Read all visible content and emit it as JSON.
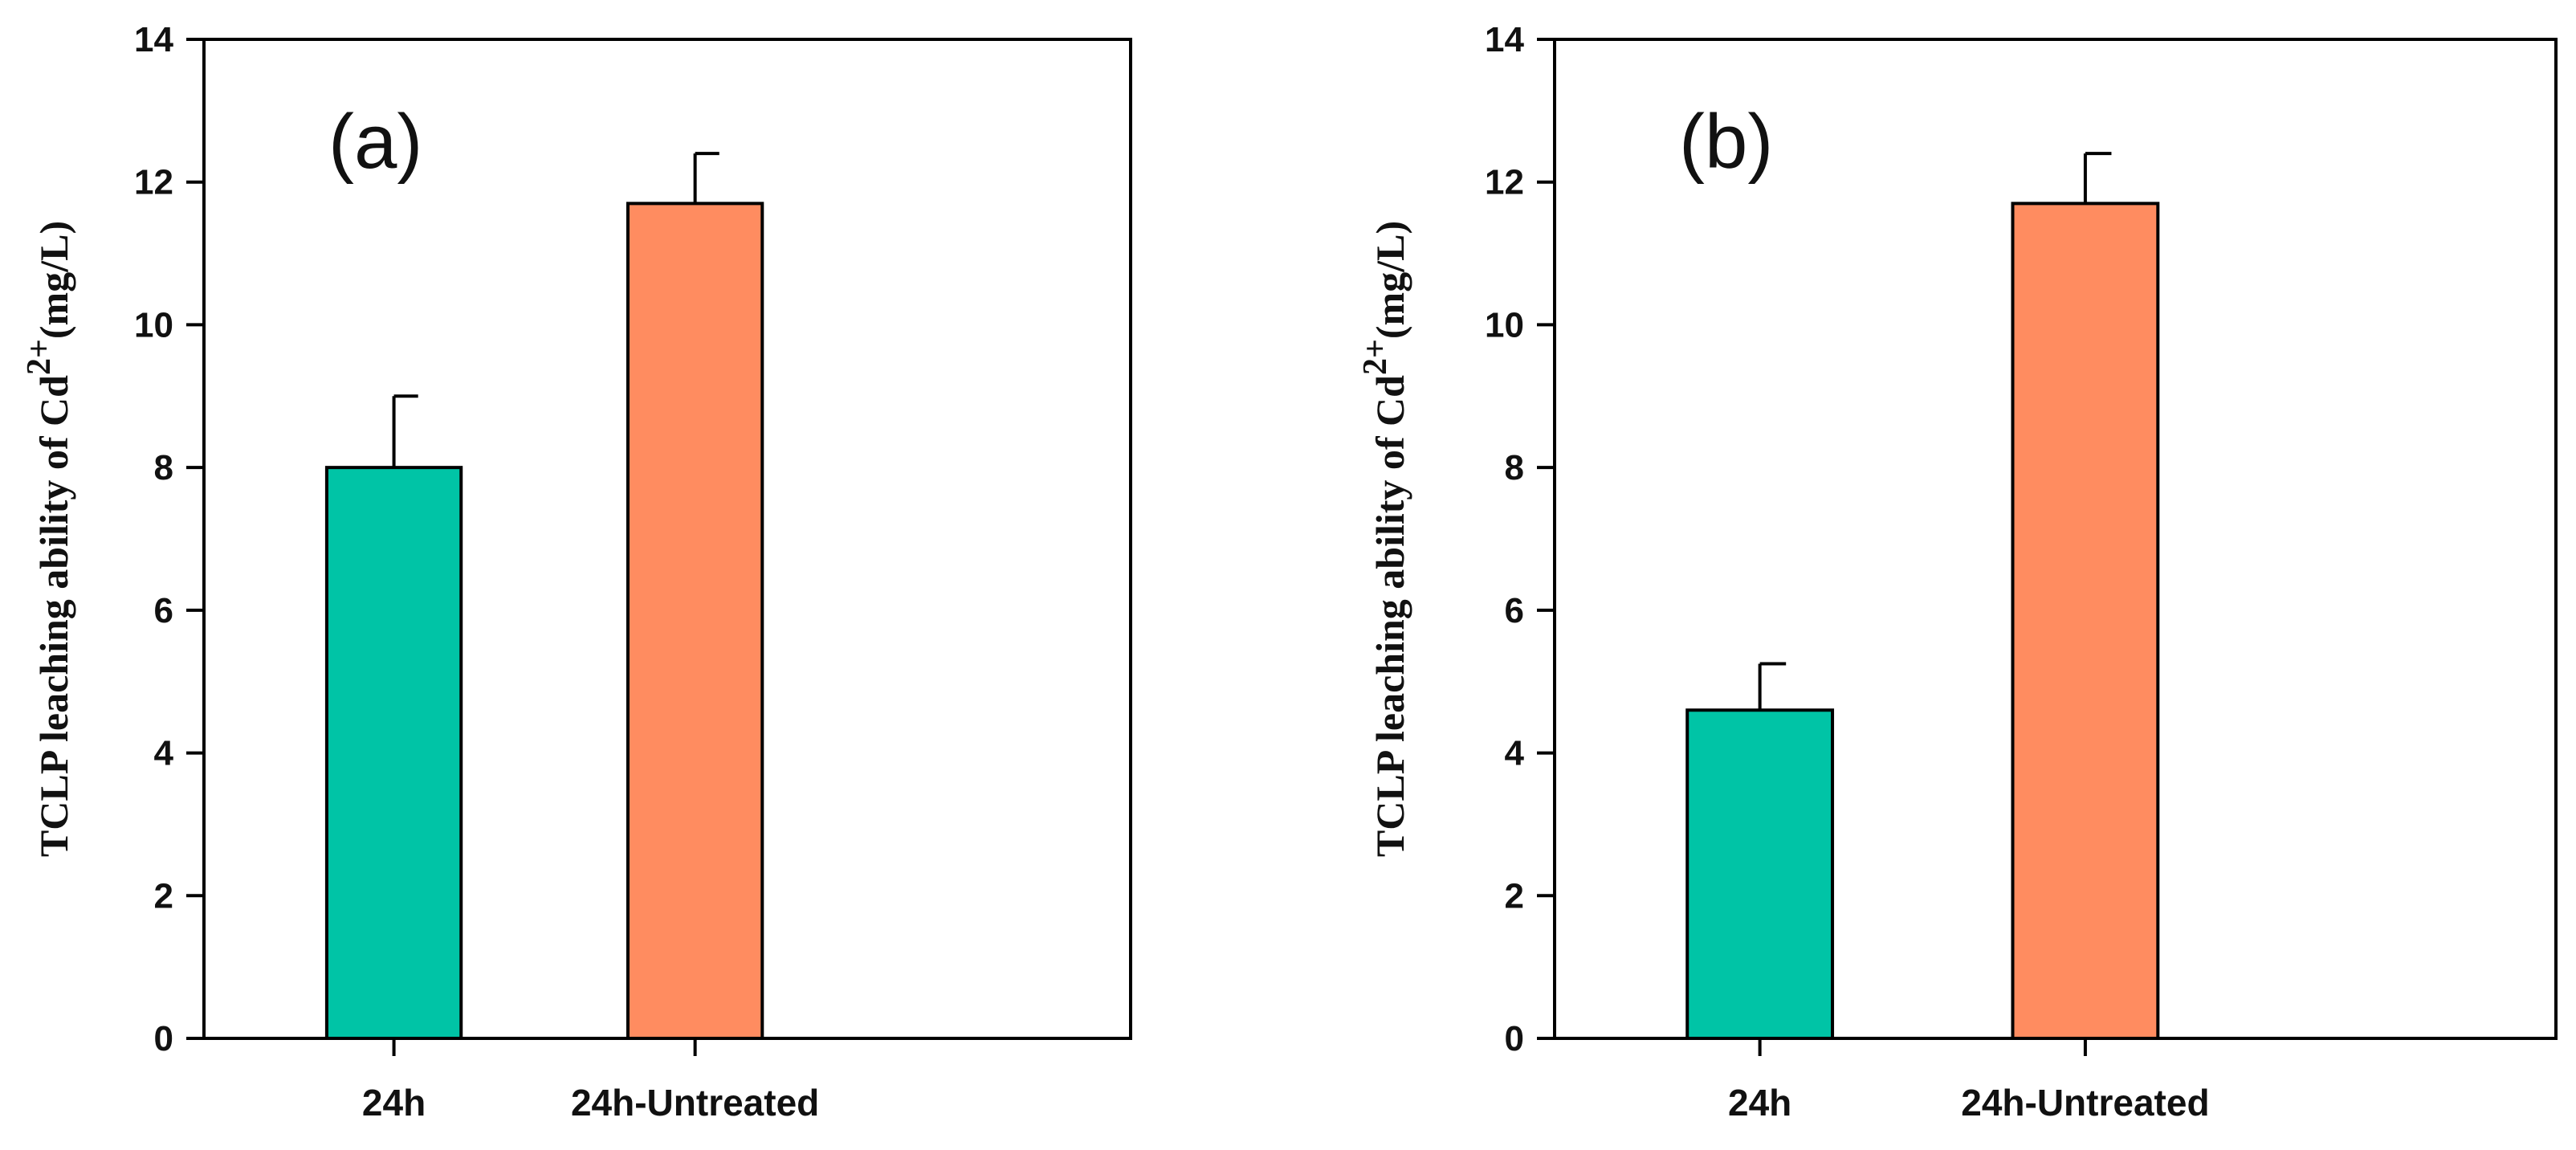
{
  "chart_data": [
    {
      "type": "bar",
      "panel_label": "(a)",
      "categories": [
        "24h",
        "24h-Untreated"
      ],
      "values": [
        8.0,
        11.7
      ],
      "errors": [
        1.0,
        0.7
      ],
      "colors": [
        "#00C4A6",
        "#FF8C60"
      ],
      "ylabel": "TCLP leaching ability of Cd",
      "ylabel_sup": "2+",
      "ylabel_unit": "(mg/L)",
      "ylim": [
        0,
        14
      ],
      "yticks": [
        0,
        2,
        4,
        6,
        8,
        10,
        12,
        14
      ]
    },
    {
      "type": "bar",
      "panel_label": "(b)",
      "categories": [
        "24h",
        "24h-Untreated"
      ],
      "values": [
        4.6,
        11.7
      ],
      "errors": [
        0.65,
        0.7
      ],
      "colors": [
        "#00C4A6",
        "#FF8C60"
      ],
      "ylabel": "TCLP leaching ability of Cd",
      "ylabel_sup": "2+",
      "ylabel_unit": "(mg/L)",
      "ylim": [
        0,
        14
      ],
      "yticks": [
        0,
        2,
        4,
        6,
        8,
        10,
        12,
        14
      ]
    }
  ]
}
